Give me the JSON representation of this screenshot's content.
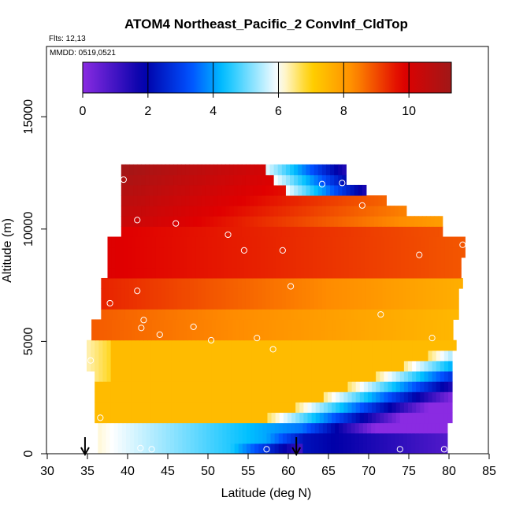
{
  "chart_data": {
    "type": "heatmap",
    "title": "ATOM4 Northeast_Pacific_2 ConvInf_CldTop",
    "notes": [
      "Flts: 12,13",
      "MMDD: 0519,0521"
    ],
    "xlabel": "Latitude (deg N)",
    "ylabel": "Altitude (m)",
    "xlim": [
      30,
      85
    ],
    "ylim": [
      0,
      17500
    ],
    "x_ticks": [
      "30",
      "35",
      "40",
      "45",
      "50",
      "55",
      "60",
      "65",
      "70",
      "75",
      "80",
      "85"
    ],
    "y_ticks": [
      "0",
      "5000",
      "10000",
      "15000"
    ],
    "colorbar": {
      "range": [
        0,
        11.3
      ],
      "tick_labels": [
        "0",
        "2",
        "4",
        "6",
        "8",
        "10"
      ],
      "colors": [
        "#8a2be2",
        "#0000a8",
        "#0050ff",
        "#00c0ff",
        "#ffffff",
        "#ffd000",
        "#ff8c00",
        "#e00000",
        "#a01818"
      ]
    },
    "arrow_latitudes": [
      34.7,
      61.0
    ],
    "points": [
      {
        "lat": 39.5,
        "alt": 12200
      },
      {
        "lat": 41.2,
        "alt": 10400
      },
      {
        "lat": 46.0,
        "alt": 10250
      },
      {
        "lat": 52.5,
        "alt": 9750
      },
      {
        "lat": 54.5,
        "alt": 9050
      },
      {
        "lat": 59.3,
        "alt": 9050
      },
      {
        "lat": 64.2,
        "alt": 12000
      },
      {
        "lat": 66.7,
        "alt": 12050
      },
      {
        "lat": 69.2,
        "alt": 11050
      },
      {
        "lat": 81.7,
        "alt": 9300
      },
      {
        "lat": 76.3,
        "alt": 8850
      },
      {
        "lat": 37.8,
        "alt": 6700
      },
      {
        "lat": 41.2,
        "alt": 7250
      },
      {
        "lat": 60.3,
        "alt": 7450
      },
      {
        "lat": 71.5,
        "alt": 6200
      },
      {
        "lat": 42.0,
        "alt": 5950
      },
      {
        "lat": 41.7,
        "alt": 5600
      },
      {
        "lat": 48.2,
        "alt": 5650
      },
      {
        "lat": 44.0,
        "alt": 5300
      },
      {
        "lat": 50.4,
        "alt": 5050
      },
      {
        "lat": 56.1,
        "alt": 5150
      },
      {
        "lat": 58.1,
        "alt": 4650
      },
      {
        "lat": 77.9,
        "alt": 5150
      },
      {
        "lat": 35.4,
        "alt": 4150
      },
      {
        "lat": 36.6,
        "alt": 1600
      },
      {
        "lat": 41.6,
        "alt": 250
      },
      {
        "lat": 43.0,
        "alt": 200
      },
      {
        "lat": 57.3,
        "alt": 200
      },
      {
        "lat": 73.9,
        "alt": 200
      },
      {
        "lat": 79.4,
        "alt": 200
      }
    ]
  }
}
